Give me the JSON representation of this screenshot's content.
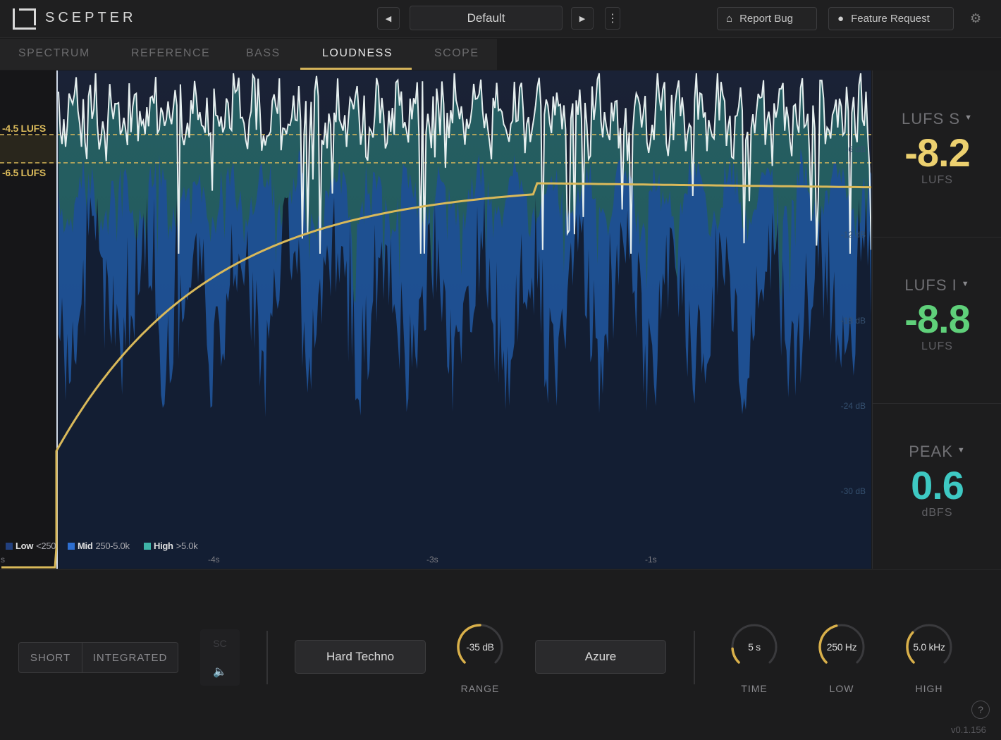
{
  "app": {
    "brand": "SCEPTER"
  },
  "header": {
    "prev_icon": "◀",
    "next_icon": "▶",
    "preset": "Default",
    "more_icon": "⋮",
    "report_bug": "Report Bug",
    "feature_request": "Feature Request",
    "bug_icon": "⌂",
    "bulb_icon": "●",
    "settings_icon": "⚙"
  },
  "tabs": [
    {
      "label": "SPECTRUM",
      "active": false
    },
    {
      "label": "REFERENCE",
      "active": false
    },
    {
      "label": "BASS",
      "active": false
    },
    {
      "label": "LOUDNESS",
      "active": true
    },
    {
      "label": "SCOPE",
      "active": false
    }
  ],
  "chart": {
    "range_top_label": "-4.5 LUFS",
    "range_bottom_label": "-6.5 LUFS",
    "db_ticks": [
      "-6 dB",
      "-12 dB",
      "-18 dB",
      "-24 dB",
      "-30 dB"
    ],
    "time_ticks": [
      "s",
      "-4s",
      "-3s",
      "-1s"
    ],
    "legend": [
      {
        "name": "Low",
        "range": "<250",
        "color": "#22407e"
      },
      {
        "name": "Mid",
        "range": "250-5.0k",
        "color": "#2e6fd0"
      },
      {
        "name": "High",
        "range": ">5.0k",
        "color": "#3fb4a8"
      }
    ]
  },
  "chart_data": {
    "type": "area",
    "title": "",
    "xlabel": "",
    "ylabel": "",
    "x_ticks": [
      "-4s",
      "-3s",
      "-1s"
    ],
    "y_ticks_db": [
      -6,
      -12,
      -18,
      -24,
      -30
    ],
    "target_range_lufs": [
      -4.5,
      -6.5
    ],
    "series": [
      {
        "name": "Low <250",
        "color": "#22407e"
      },
      {
        "name": "Mid 250-5.0k",
        "color": "#2e6fd0"
      },
      {
        "name": "High >5.0k",
        "color": "#3fb4a8"
      }
    ],
    "integrated_curve_end_lufs": -8.8,
    "grid": false,
    "legend_position": "bottom-left"
  },
  "meters": [
    {
      "label": "LUFS S",
      "value": "-8.2",
      "unit": "LUFS",
      "color": "#ecd06f"
    },
    {
      "label": "LUFS I",
      "value": "-8.8",
      "unit": "LUFS",
      "color": "#5fd07a"
    },
    {
      "label": "PEAK",
      "value": "0.6",
      "unit": "dBFS",
      "color": "#3ec9c3"
    }
  ],
  "controls": {
    "mode_short": "SHORT",
    "mode_integrated": "INTEGRATED",
    "sc_label": "SC",
    "speaker_icon": "🔈",
    "genre": "Hard Techno",
    "theme": "Azure",
    "knobs": [
      {
        "label": "RANGE",
        "value": "-35 dB",
        "fraction": 0.5
      },
      {
        "label": "TIME",
        "value": "5 s",
        "fraction": 0.15
      },
      {
        "label": "LOW",
        "value": "250 Hz",
        "fraction": 0.45
      },
      {
        "label": "HIGH",
        "value": "5.0 kHz",
        "fraction": 0.32
      }
    ],
    "help_icon": "?",
    "version": "v0.1.156"
  }
}
